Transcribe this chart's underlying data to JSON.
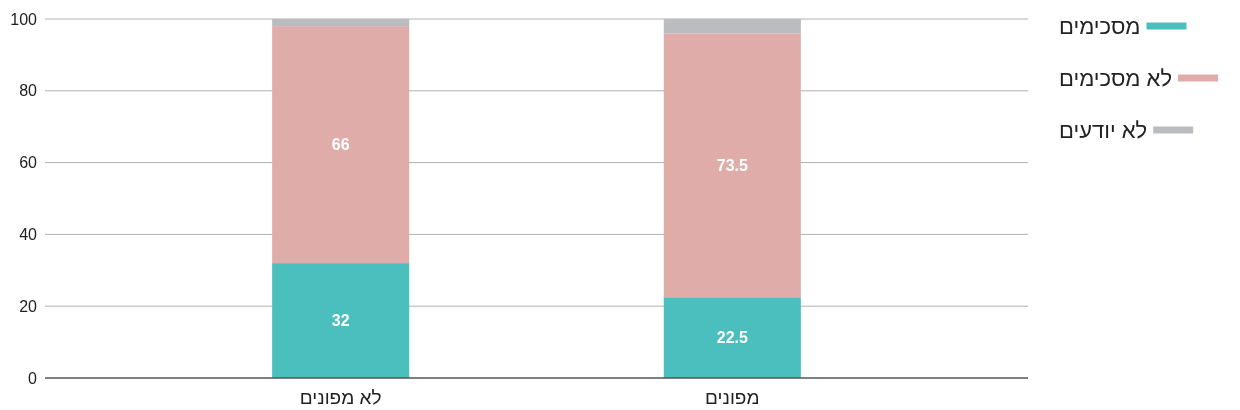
{
  "chart_data": {
    "type": "bar",
    "categories": [
      "לא מפונים",
      "מפונים"
    ],
    "series": [
      {
        "name": "מסכימים",
        "color": "#4bbfbd",
        "values": [
          32,
          22.5
        ],
        "value_labels": [
          "32",
          "22.5"
        ]
      },
      {
        "name": "לא מסכימים",
        "color": "#dfaca9",
        "values": [
          66,
          73.5
        ],
        "value_labels": [
          "66",
          "73.5"
        ]
      },
      {
        "name": "לא יודעים",
        "color": "#bbbcc0",
        "values": [
          2,
          4
        ],
        "value_labels": [
          null,
          null
        ]
      }
    ],
    "stacked": true,
    "ylim": [
      0,
      100
    ],
    "yticks": [
      0,
      20,
      40,
      60,
      80,
      100
    ],
    "grid": "y",
    "legend": "right"
  }
}
